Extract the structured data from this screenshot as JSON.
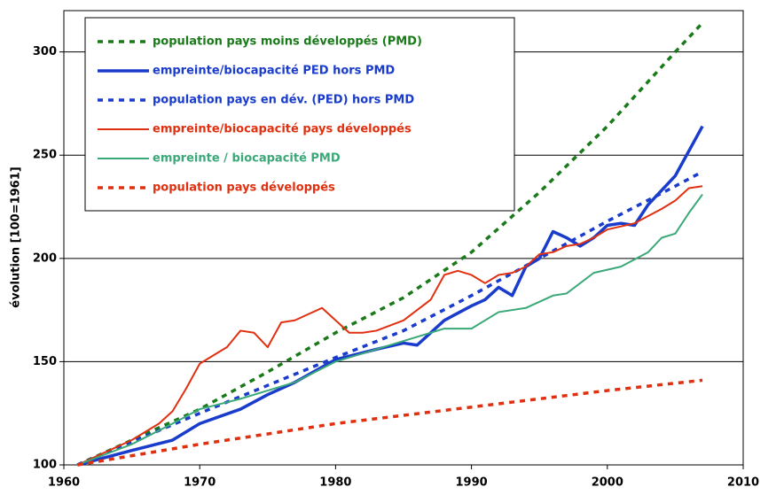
{
  "chart_data": {
    "type": "line",
    "ylabel": "évolution [100=1961]",
    "xlim": [
      1960,
      2010
    ],
    "xticks": [
      1960,
      1970,
      1980,
      1990,
      2000,
      2010
    ],
    "ylim": [
      100,
      320
    ],
    "yticks": [
      100,
      150,
      200,
      250,
      300
    ],
    "grid": true,
    "legend": "top-left",
    "series": [
      {
        "name": "population pays moins développés (PMD)",
        "color": "#1a7a1a",
        "dashed": true,
        "x": [
          1961,
          1965,
          1970,
          1975,
          1980,
          1985,
          1990,
          1995,
          2000,
          2005,
          2007
        ],
        "values": [
          100,
          112,
          127,
          145,
          164,
          181,
          203,
          232,
          264,
          300,
          314
        ]
      },
      {
        "name": "empreinte/biocapacité PED hors PMD",
        "color": "#1a3ccc",
        "dashed": false,
        "x": [
          1961,
          1965,
          1968,
          1970,
          1973,
          1975,
          1977,
          1980,
          1983,
          1985,
          1986,
          1988,
          1990,
          1991,
          1992,
          1993,
          1994,
          1995,
          1996,
          1997,
          1998,
          1999,
          2000,
          2001,
          2002,
          2003,
          2005,
          2006,
          2007
        ],
        "values": [
          100,
          107,
          112,
          120,
          127,
          134,
          140,
          151,
          156,
          159,
          158,
          170,
          177,
          180,
          186,
          182,
          196,
          200,
          213,
          210,
          206,
          210,
          216,
          217,
          216,
          226,
          240,
          252,
          264
        ]
      },
      {
        "name": "population pays en dév. (PED) hors PMD",
        "color": "#1a3ccc",
        "dashed": true,
        "x": [
          1961,
          1970,
          1980,
          1985,
          1990,
          1995,
          2000,
          2005,
          2007
        ],
        "values": [
          100,
          125,
          152,
          165,
          182,
          200,
          218,
          235,
          242
        ]
      },
      {
        "name": "empreinte/biocapacité pays développés",
        "color": "#e03010",
        "dashed": false,
        "x": [
          1961,
          1963,
          1965,
          1967,
          1968,
          1969,
          1970,
          1971,
          1972,
          1973,
          1974,
          1975,
          1976,
          1977,
          1978,
          1979,
          1980,
          1981,
          1982,
          1983,
          1985,
          1987,
          1988,
          1989,
          1990,
          1991,
          1992,
          1993,
          1994,
          1995,
          1996,
          1997,
          1998,
          1999,
          2000,
          2002,
          2004,
          2005,
          2006,
          2007
        ],
        "values": [
          100,
          106,
          112,
          120,
          126,
          137,
          149,
          153,
          157,
          165,
          164,
          157,
          169,
          170,
          173,
          176,
          170,
          164,
          164,
          165,
          170,
          180,
          192,
          194,
          192,
          188,
          192,
          193,
          196,
          202,
          203,
          206,
          207,
          210,
          214,
          217,
          224,
          228,
          234,
          235
        ]
      },
      {
        "name": "empreinte / biocapacité PMD",
        "color": "#3aa878",
        "dashed": false,
        "x": [
          1961,
          1965,
          1968,
          1970,
          1973,
          1975,
          1977,
          1980,
          1983,
          1985,
          1986,
          1988,
          1990,
          1992,
          1994,
          1996,
          1997,
          1999,
          2001,
          2003,
          2004,
          2005,
          2006,
          2007
        ],
        "values": [
          100,
          110,
          120,
          127,
          132,
          136,
          140,
          150,
          156,
          160,
          162,
          166,
          166,
          174,
          176,
          182,
          183,
          193,
          196,
          203,
          210,
          212,
          222,
          231
        ]
      },
      {
        "name": "population pays développés",
        "color": "#e03010",
        "dashed": true,
        "x": [
          1961,
          1970,
          1980,
          1990,
          2000,
          2007
        ],
        "values": [
          100,
          110,
          120,
          128,
          136,
          141
        ]
      }
    ]
  }
}
